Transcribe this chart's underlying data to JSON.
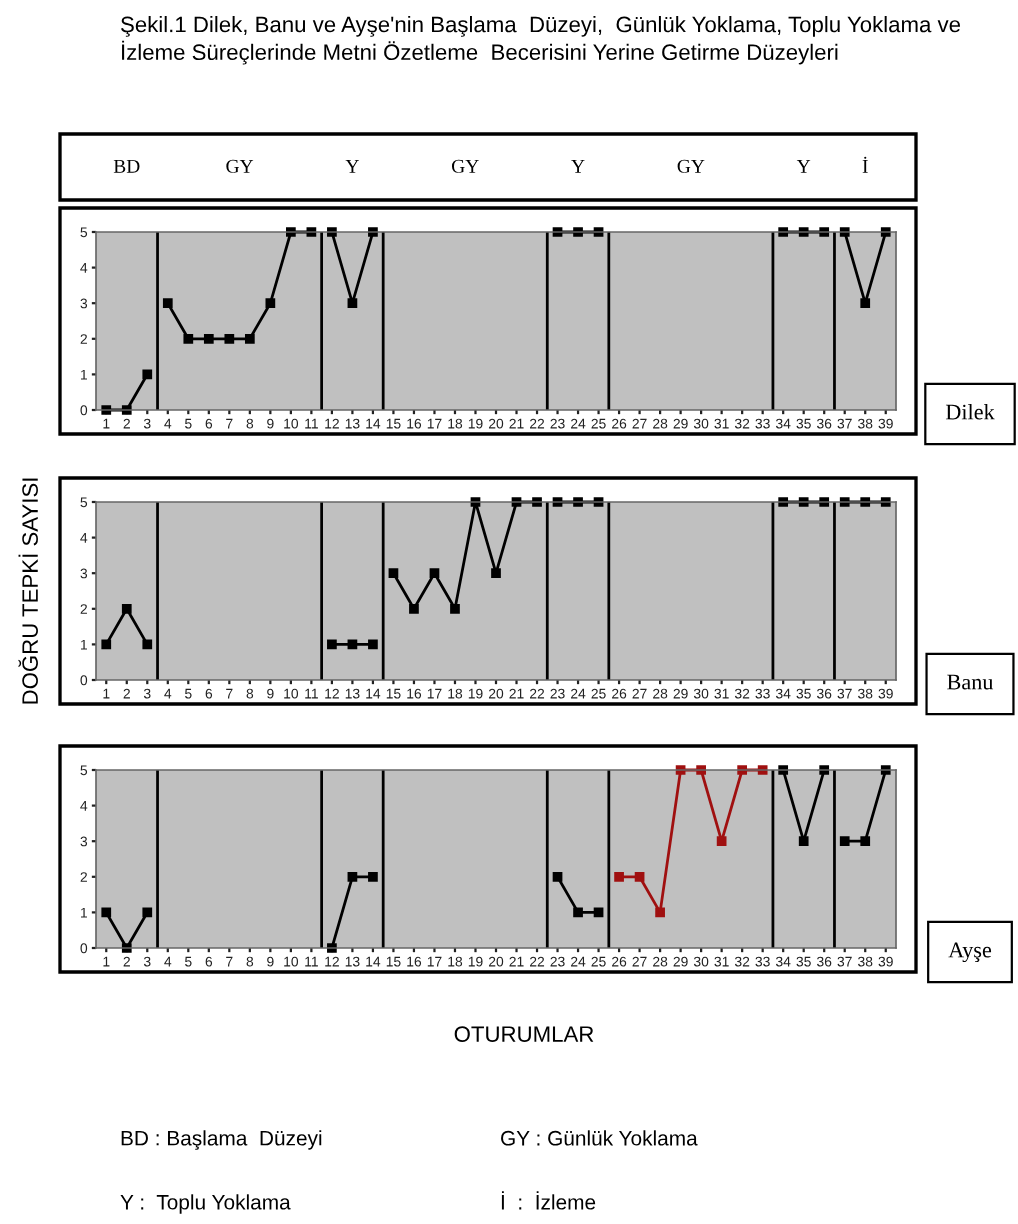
{
  "chart_data": [
    {
      "type": "line",
      "title": "Şekil.1 Dilek, Banu ve Ayşe'nin Başlama  Düzeyi,  Günlük Yoklama, Toplu Yoklama ve İzleme Süreçlerinde Metni Özetleme  Becerisini Yerine Getirme Düzeyleri",
      "y2label": "Dilek",
      "marker": "square",
      "line_style": "solid",
      "grid": false,
      "legend": false,
      "xlim": [
        0.5,
        39.5
      ],
      "xticks": [
        1,
        2,
        3,
        4,
        5,
        6,
        7,
        8,
        9,
        10,
        11,
        12,
        13,
        14,
        15,
        16,
        17,
        18,
        19,
        20,
        21,
        22,
        23,
        24,
        25,
        26,
        27,
        28,
        29,
        30,
        31,
        32,
        33,
        34,
        35,
        36,
        37,
        38,
        39
      ],
      "ylim": [
        0,
        5
      ],
      "yticks": [
        0,
        1,
        2,
        3,
        4,
        5
      ],
      "ref_lines": [
        {
          "axis": "x",
          "value": 3.5
        },
        {
          "axis": "x",
          "value": 11.5
        },
        {
          "axis": "x",
          "value": 14.5
        },
        {
          "axis": "x",
          "value": 22.5
        },
        {
          "axis": "x",
          "value": 25.5
        },
        {
          "axis": "x",
          "value": 33.5
        },
        {
          "axis": "x",
          "value": 36.5
        }
      ],
      "annotations": [
        "BD",
        "GY",
        "Y",
        "GY",
        "Y",
        "GY",
        "Y",
        "İ"
      ],
      "series": [
        {
          "color": "#000000",
          "x": [
            1,
            2,
            3
          ],
          "values": [
            0,
            0,
            1
          ]
        },
        {
          "color": "#000000",
          "x": [
            4,
            5,
            6,
            7,
            8,
            9,
            10,
            11
          ],
          "values": [
            3,
            2,
            2,
            2,
            2,
            3,
            5,
            5
          ]
        },
        {
          "color": "#000000",
          "x": [
            12,
            13,
            14
          ],
          "values": [
            5,
            3,
            5
          ]
        },
        {
          "color": "#000000",
          "x": [
            23,
            24,
            25
          ],
          "values": [
            5,
            5,
            5
          ]
        },
        {
          "color": "#000000",
          "x": [
            34,
            35,
            36
          ],
          "values": [
            5,
            5,
            5
          ]
        },
        {
          "color": "#000000",
          "x": [
            37,
            38,
            39
          ],
          "values": [
            5,
            3,
            5
          ]
        }
      ]
    },
    {
      "type": "line",
      "y2label": "Banu",
      "ylabel": "DOĞRU TEPKİ SAYISI",
      "marker": "square",
      "line_style": "solid",
      "grid": false,
      "legend": false,
      "xlim": [
        0.5,
        39.5
      ],
      "xticks": [
        1,
        2,
        3,
        4,
        5,
        6,
        7,
        8,
        9,
        10,
        11,
        12,
        13,
        14,
        15,
        16,
        17,
        18,
        19,
        20,
        21,
        22,
        23,
        24,
        25,
        26,
        27,
        28,
        29,
        30,
        31,
        32,
        33,
        34,
        35,
        36,
        37,
        38,
        39
      ],
      "ylim": [
        0,
        5
      ],
      "yticks": [
        0,
        1,
        2,
        3,
        4,
        5
      ],
      "ref_lines": [
        {
          "axis": "x",
          "value": 3.5
        },
        {
          "axis": "x",
          "value": 11.5
        },
        {
          "axis": "x",
          "value": 14.5
        },
        {
          "axis": "x",
          "value": 22.5
        },
        {
          "axis": "x",
          "value": 25.5
        },
        {
          "axis": "x",
          "value": 33.5
        },
        {
          "axis": "x",
          "value": 36.5
        }
      ],
      "series": [
        {
          "color": "#000000",
          "x": [
            1,
            2,
            3
          ],
          "values": [
            1,
            2,
            1
          ]
        },
        {
          "color": "#000000",
          "x": [
            12,
            13,
            14
          ],
          "values": [
            1,
            1,
            1
          ]
        },
        {
          "color": "#000000",
          "x": [
            15,
            16,
            17,
            18,
            19,
            20,
            21,
            22
          ],
          "values": [
            3,
            2,
            3,
            2,
            5,
            3,
            5,
            5
          ]
        },
        {
          "color": "#000000",
          "x": [
            23,
            24,
            25
          ],
          "values": [
            5,
            5,
            5
          ]
        },
        {
          "color": "#000000",
          "x": [
            34,
            35,
            36
          ],
          "values": [
            5,
            5,
            5
          ]
        },
        {
          "color": "#000000",
          "x": [
            37,
            38,
            39
          ],
          "values": [
            5,
            5,
            5
          ]
        }
      ]
    },
    {
      "type": "line",
      "y2label": "Ayşe",
      "xlabel": "OTURUMLAR",
      "marker": "square",
      "line_style": "solid",
      "grid": false,
      "legend": false,
      "xlim": [
        0.5,
        39.5
      ],
      "xticks": [
        1,
        2,
        3,
        4,
        5,
        6,
        7,
        8,
        9,
        10,
        11,
        12,
        13,
        14,
        15,
        16,
        17,
        18,
        19,
        20,
        21,
        22,
        23,
        24,
        25,
        26,
        27,
        28,
        29,
        30,
        31,
        32,
        33,
        34,
        35,
        36,
        37,
        38,
        39
      ],
      "ylim": [
        0,
        5
      ],
      "yticks": [
        0,
        1,
        2,
        3,
        4,
        5
      ],
      "ref_lines": [
        {
          "axis": "x",
          "value": 3.5
        },
        {
          "axis": "x",
          "value": 11.5
        },
        {
          "axis": "x",
          "value": 14.5
        },
        {
          "axis": "x",
          "value": 22.5
        },
        {
          "axis": "x",
          "value": 25.5
        },
        {
          "axis": "x",
          "value": 33.5
        },
        {
          "axis": "x",
          "value": 36.5
        }
      ],
      "annotations": [
        "BD : Başlama  Düzeyi",
        "GY : Günlük Yoklama",
        "Y :  Toplu Yoklama",
        "İ  :  İzleme"
      ],
      "series": [
        {
          "color": "#000000",
          "x": [
            1,
            2,
            3
          ],
          "values": [
            1,
            0,
            1
          ]
        },
        {
          "color": "#000000",
          "x": [
            12,
            13,
            14
          ],
          "values": [
            0,
            2,
            2
          ]
        },
        {
          "color": "#000000",
          "x": [
            23,
            24,
            25
          ],
          "values": [
            2,
            1,
            1
          ]
        },
        {
          "color": "#a01010",
          "x": [
            26,
            27,
            28,
            29,
            30,
            31,
            32,
            33
          ],
          "values": [
            2,
            2,
            1,
            5,
            5,
            3,
            5,
            5
          ]
        },
        {
          "color": "#000000",
          "x": [
            34,
            35,
            36
          ],
          "values": [
            5,
            3,
            5
          ]
        },
        {
          "color": "#000000",
          "x": [
            37,
            38,
            39
          ],
          "values": [
            3,
            3,
            5
          ]
        }
      ]
    }
  ]
}
